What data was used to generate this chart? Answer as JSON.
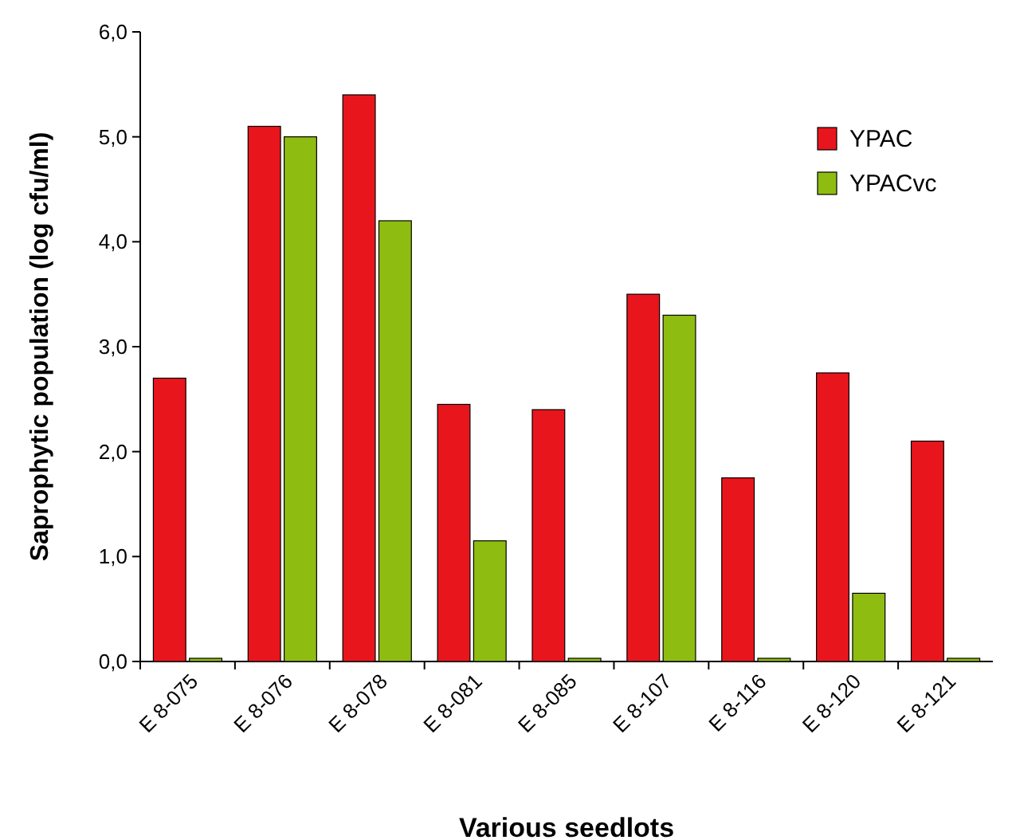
{
  "chart_data": {
    "type": "bar",
    "xlabel": "Various seedlots",
    "ylabel": "Saprophytic population (log cfu/ml)",
    "categories": [
      "E 8-075",
      "E 8-076",
      "E 8-078",
      "E 8-081",
      "E 8-085",
      "E 8-107",
      "E 8-116",
      "E 8-120",
      "E 8-121"
    ],
    "series": [
      {
        "name": "YPAC",
        "color": "#e8161c",
        "values": [
          2.7,
          5.1,
          5.4,
          2.45,
          2.4,
          3.5,
          1.75,
          2.75,
          2.1
        ]
      },
      {
        "name": "YPACvc",
        "color": "#8fbc10",
        "values": [
          0,
          5.0,
          4.2,
          1.15,
          0,
          3.3,
          0,
          0.65,
          0
        ]
      }
    ],
    "ylim": [
      0,
      6
    ],
    "yticks": [
      {
        "value": 0,
        "label": "0,0"
      },
      {
        "value": 1,
        "label": "1,0"
      },
      {
        "value": 2,
        "label": "2,0"
      },
      {
        "value": 3,
        "label": "3,0"
      },
      {
        "value": 4,
        "label": "4,0"
      },
      {
        "value": 5,
        "label": "5,0"
      },
      {
        "value": 6,
        "label": "6,0"
      }
    ],
    "grid": false,
    "legend": "top right"
  }
}
